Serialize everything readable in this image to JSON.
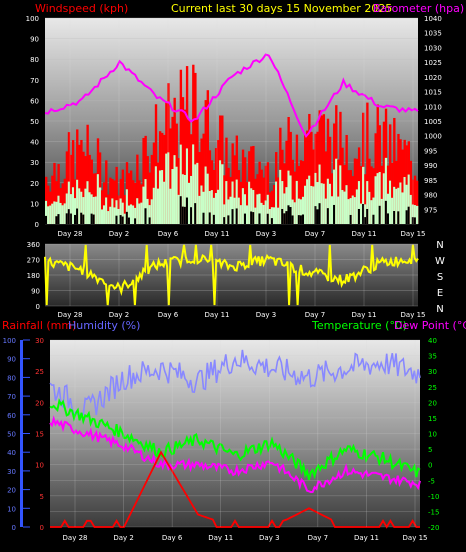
{
  "header": {
    "left_title": "Windspeed (kph)",
    "center_title": "Current last 30 days 15 November 2025",
    "right_title": "Barometer (hpa)"
  },
  "colors": {
    "wind_red": "#ff0000",
    "gust_green": "#00e000",
    "avg_wind_fill": "#c8ffc8",
    "baro_magenta": "#ff00ff",
    "direction_yellow": "#ffff00",
    "rain_red": "#ff0000",
    "humidity_blue": "#8888ff",
    "temp_green": "#00ff00",
    "dew_magenta": "#ff00ff",
    "scale_blue": "#3355ff",
    "dark_bar": "#000000"
  },
  "x_axis": {
    "tick_labels": [
      "Day 28",
      "Day 2",
      "Day 6",
      "Day 11",
      "Day 3",
      "Day 7",
      "Day 11",
      "Day 15"
    ]
  },
  "direction_axis": {
    "compass_labels": [
      "N",
      "W",
      "S",
      "E",
      "N"
    ],
    "tick_labels": [
      "360",
      "270",
      "180",
      "90",
      "0"
    ]
  },
  "bottom_titles": {
    "rainfall": "Rainfall (mm)",
    "humidity": "Humidity (%)",
    "temperature": "Temperature (°C)",
    "dewpoint": "Dew Point (°C)"
  },
  "chart_data": [
    {
      "type": "area",
      "title": "Current last 30 days 15 November 2025",
      "ylabel": "Windspeed (kph)",
      "y2label": "Barometer (hpa)",
      "ylim": [
        0,
        100
      ],
      "y2lim": [
        970,
        1040
      ],
      "yticks": [
        "0",
        "10",
        "20",
        "30",
        "40",
        "50",
        "60",
        "70",
        "80",
        "90",
        "100"
      ],
      "y2ticks": [
        "975",
        "980",
        "985",
        "990",
        "995",
        "1000",
        "1005",
        "1010",
        "1015",
        "1020",
        "1025",
        "1030",
        "1035",
        "1040"
      ],
      "x_positions": [
        0,
        0.1,
        0.2,
        0.3,
        0.4,
        0.5,
        0.6,
        0.7,
        0.8,
        0.9,
        1.0
      ],
      "series": [
        {
          "name": "Windspeed (kph)",
          "values": [
            22,
            35,
            18,
            42,
            55,
            30,
            25,
            45,
            38,
            40,
            28
          ]
        },
        {
          "name": "Barometer (hpa)",
          "values": [
            1008,
            1012,
            1025,
            1013,
            1005,
            1020,
            1028,
            1000,
            1018,
            1010,
            1008
          ]
        }
      ]
    },
    {
      "type": "line",
      "title": "",
      "ylim": [
        0,
        360
      ],
      "yticks": [
        "0",
        "90",
        "180",
        "270",
        "360"
      ],
      "x_positions": [
        0,
        0.1,
        0.2,
        0.3,
        0.4,
        0.5,
        0.6,
        0.7,
        0.8,
        0.9,
        1.0
      ],
      "series": [
        {
          "name": "",
          "values": [
            260,
            210,
            100,
            240,
            280,
            230,
            270,
            200,
            150,
            250,
            280
          ]
        }
      ]
    },
    {
      "type": "line",
      "title": "",
      "ylim_left": [
        0,
        100
      ],
      "ylim_rain": [
        0,
        30
      ],
      "ylim_temp": [
        -20,
        40
      ],
      "yticks_left": [
        "0",
        "10",
        "20",
        "30",
        "40",
        "50",
        "60",
        "70",
        "80",
        "90",
        "100"
      ],
      "yticks_rain": [
        "0",
        "5",
        "10",
        "15",
        "20",
        "25",
        "30"
      ],
      "yticks_temp": [
        "-20",
        "-15",
        "-10",
        "-5",
        "0",
        "5",
        "10",
        "15",
        "20",
        "25",
        "30",
        "35",
        "40"
      ],
      "x_positions": [
        0,
        0.1,
        0.2,
        0.3,
        0.4,
        0.5,
        0.6,
        0.7,
        0.8,
        0.9,
        1.0
      ],
      "series": [
        {
          "name": "Humidity (%)",
          "values": [
            75,
            62,
            80,
            85,
            78,
            90,
            85,
            80,
            85,
            88,
            82
          ]
        },
        {
          "name": "Temperature (°C)",
          "values": [
            20,
            15,
            10,
            4,
            8,
            3,
            7,
            -3,
            5,
            2,
            -3
          ]
        },
        {
          "name": "Dew Point (°C)",
          "values": [
            14,
            10,
            6,
            0,
            0,
            -2,
            1,
            -8,
            -2,
            -4,
            -6
          ]
        },
        {
          "name": "Rainfall (mm)",
          "values": [
            0,
            0,
            0,
            12,
            2,
            0,
            0,
            3,
            0,
            0,
            0
          ]
        }
      ]
    }
  ]
}
